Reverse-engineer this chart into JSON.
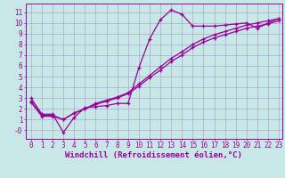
{
  "xlabel": "Windchill (Refroidissement éolien,°C)",
  "bg_color": "#c8e8e8",
  "grid_color": "#aaaacc",
  "line_color": "#990099",
  "xlim": [
    -0.5,
    23.3
  ],
  "ylim": [
    -0.8,
    11.8
  ],
  "xticks": [
    0,
    1,
    2,
    3,
    4,
    5,
    6,
    7,
    8,
    9,
    10,
    11,
    12,
    13,
    14,
    15,
    16,
    17,
    18,
    19,
    20,
    21,
    22,
    23
  ],
  "yticks": [
    0,
    1,
    2,
    3,
    4,
    5,
    6,
    7,
    8,
    9,
    10,
    11
  ],
  "line1_x": [
    0,
    1,
    2,
    3,
    4,
    5,
    6,
    7,
    8,
    9,
    10,
    11,
    12,
    13,
    14,
    15,
    16,
    17,
    18,
    19,
    20,
    21,
    22,
    23
  ],
  "line1_y": [
    3.0,
    1.5,
    1.5,
    -0.2,
    1.2,
    2.1,
    2.2,
    2.3,
    2.5,
    2.5,
    5.8,
    8.5,
    10.3,
    11.2,
    10.8,
    9.7,
    9.7,
    9.7,
    9.8,
    9.9,
    10.0,
    9.5,
    10.0,
    10.4
  ],
  "line2_x": [
    0,
    1,
    2,
    3,
    4,
    5,
    6,
    7,
    8,
    9,
    10,
    11,
    12,
    13,
    14,
    15,
    16,
    17,
    18,
    19,
    20,
    21,
    22,
    23
  ],
  "line2_y": [
    2.7,
    1.4,
    1.4,
    1.0,
    1.6,
    2.0,
    2.5,
    2.8,
    3.1,
    3.5,
    4.3,
    5.1,
    5.9,
    6.7,
    7.3,
    8.0,
    8.5,
    8.9,
    9.2,
    9.5,
    9.8,
    10.0,
    10.2,
    10.4
  ],
  "line3_x": [
    0,
    1,
    2,
    3,
    4,
    5,
    6,
    7,
    8,
    9,
    10,
    11,
    12,
    13,
    14,
    15,
    16,
    17,
    18,
    19,
    20,
    21,
    22,
    23
  ],
  "line3_y": [
    2.6,
    1.3,
    1.3,
    1.0,
    1.6,
    2.0,
    2.4,
    2.7,
    3.0,
    3.4,
    4.1,
    4.9,
    5.6,
    6.4,
    7.0,
    7.7,
    8.2,
    8.6,
    8.9,
    9.2,
    9.5,
    9.7,
    9.9,
    10.2
  ],
  "tick_fontsize": 5.5,
  "label_fontsize": 6.5
}
